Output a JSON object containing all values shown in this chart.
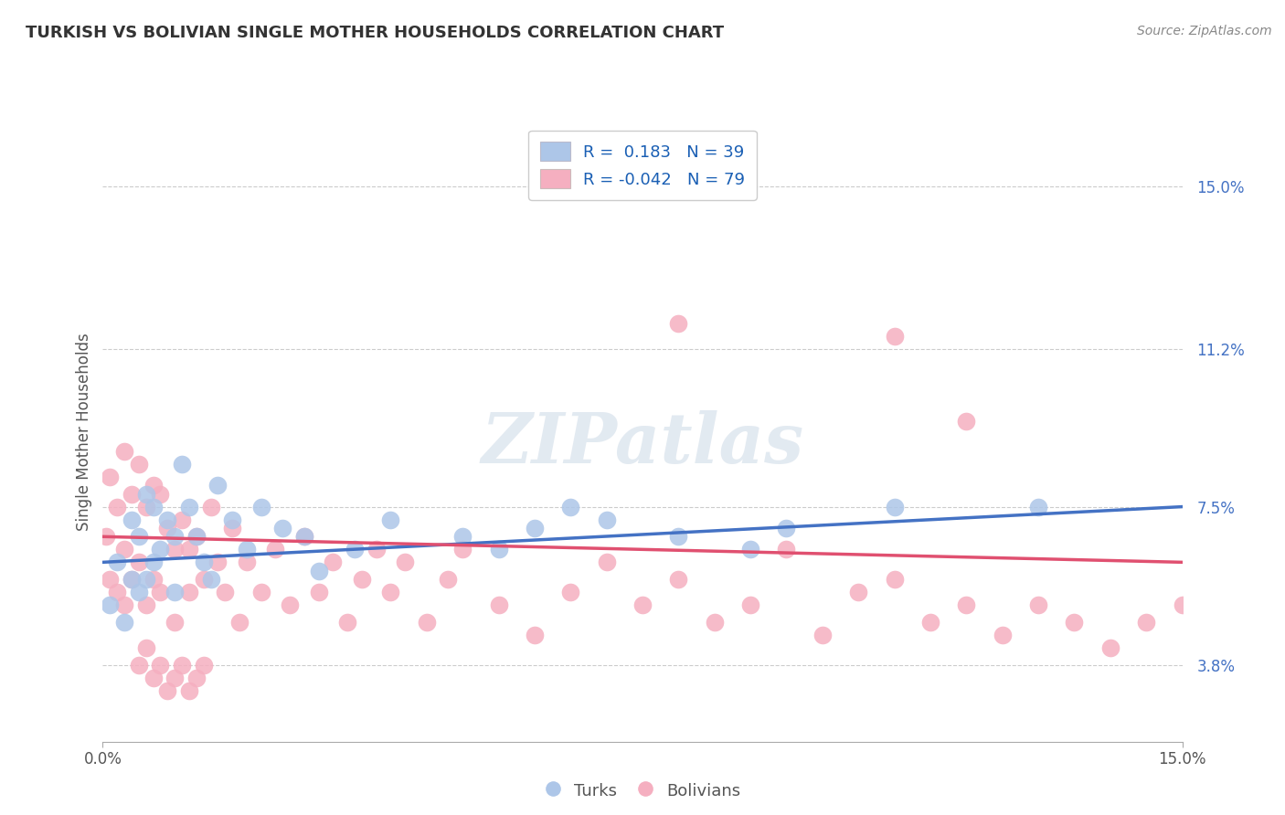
{
  "title": "TURKISH VS BOLIVIAN SINGLE MOTHER HOUSEHOLDS CORRELATION CHART",
  "source": "Source: ZipAtlas.com",
  "ylabel": "Single Mother Households",
  "y_tick_labels": [
    "3.8%",
    "7.5%",
    "11.2%",
    "15.0%"
  ],
  "y_ticks": [
    0.038,
    0.075,
    0.112,
    0.15
  ],
  "xlim": [
    0.0,
    0.15
  ],
  "ylim": [
    0.02,
    0.165
  ],
  "turks_color": "#adc6e8",
  "bolivians_color": "#f5afc0",
  "turks_line_color": "#4472c4",
  "bolivians_line_color": "#e05070",
  "legend_turks_label": "Turks",
  "legend_bolivians_label": "Bolivians",
  "R_turks": 0.183,
  "N_turks": 39,
  "R_bolivians": -0.042,
  "N_bolivians": 79,
  "watermark": "ZIPatlas",
  "turks_line_x0": 0.0,
  "turks_line_y0": 0.062,
  "turks_line_x1": 0.15,
  "turks_line_y1": 0.075,
  "bolivians_line_x0": 0.0,
  "bolivians_line_y0": 0.068,
  "bolivians_line_x1": 0.15,
  "bolivians_line_y1": 0.062,
  "turks_x": [
    0.001,
    0.002,
    0.003,
    0.004,
    0.004,
    0.005,
    0.005,
    0.006,
    0.006,
    0.007,
    0.007,
    0.008,
    0.009,
    0.01,
    0.01,
    0.011,
    0.012,
    0.013,
    0.014,
    0.015,
    0.016,
    0.018,
    0.02,
    0.022,
    0.025,
    0.028,
    0.03,
    0.035,
    0.04,
    0.05,
    0.055,
    0.06,
    0.065,
    0.07,
    0.08,
    0.09,
    0.095,
    0.11,
    0.13
  ],
  "turks_y": [
    0.052,
    0.062,
    0.048,
    0.072,
    0.058,
    0.068,
    0.055,
    0.078,
    0.058,
    0.075,
    0.062,
    0.065,
    0.072,
    0.055,
    0.068,
    0.085,
    0.075,
    0.068,
    0.062,
    0.058,
    0.08,
    0.072,
    0.065,
    0.075,
    0.07,
    0.068,
    0.06,
    0.065,
    0.072,
    0.068,
    0.065,
    0.07,
    0.075,
    0.072,
    0.068,
    0.065,
    0.07,
    0.075,
    0.075
  ],
  "bolivians_x": [
    0.0005,
    0.001,
    0.001,
    0.002,
    0.002,
    0.003,
    0.003,
    0.003,
    0.004,
    0.004,
    0.005,
    0.005,
    0.006,
    0.006,
    0.007,
    0.007,
    0.008,
    0.008,
    0.009,
    0.01,
    0.01,
    0.011,
    0.012,
    0.012,
    0.013,
    0.014,
    0.015,
    0.016,
    0.017,
    0.018,
    0.019,
    0.02,
    0.022,
    0.024,
    0.026,
    0.028,
    0.03,
    0.032,
    0.034,
    0.036,
    0.038,
    0.04,
    0.042,
    0.045,
    0.048,
    0.05,
    0.055,
    0.06,
    0.065,
    0.07,
    0.075,
    0.08,
    0.085,
    0.09,
    0.095,
    0.1,
    0.105,
    0.11,
    0.115,
    0.12,
    0.125,
    0.13,
    0.135,
    0.14,
    0.145,
    0.15,
    0.08,
    0.12,
    0.11,
    0.005,
    0.006,
    0.007,
    0.008,
    0.009,
    0.01,
    0.011,
    0.012,
    0.013,
    0.014
  ],
  "bolivians_y": [
    0.068,
    0.082,
    0.058,
    0.075,
    0.055,
    0.088,
    0.065,
    0.052,
    0.078,
    0.058,
    0.085,
    0.062,
    0.075,
    0.052,
    0.08,
    0.058,
    0.078,
    0.055,
    0.07,
    0.065,
    0.048,
    0.072,
    0.065,
    0.055,
    0.068,
    0.058,
    0.075,
    0.062,
    0.055,
    0.07,
    0.048,
    0.062,
    0.055,
    0.065,
    0.052,
    0.068,
    0.055,
    0.062,
    0.048,
    0.058,
    0.065,
    0.055,
    0.062,
    0.048,
    0.058,
    0.065,
    0.052,
    0.045,
    0.055,
    0.062,
    0.052,
    0.058,
    0.048,
    0.052,
    0.065,
    0.045,
    0.055,
    0.058,
    0.048,
    0.052,
    0.045,
    0.052,
    0.048,
    0.042,
    0.048,
    0.052,
    0.118,
    0.095,
    0.115,
    0.038,
    0.042,
    0.035,
    0.038,
    0.032,
    0.035,
    0.038,
    0.032,
    0.035,
    0.038
  ]
}
